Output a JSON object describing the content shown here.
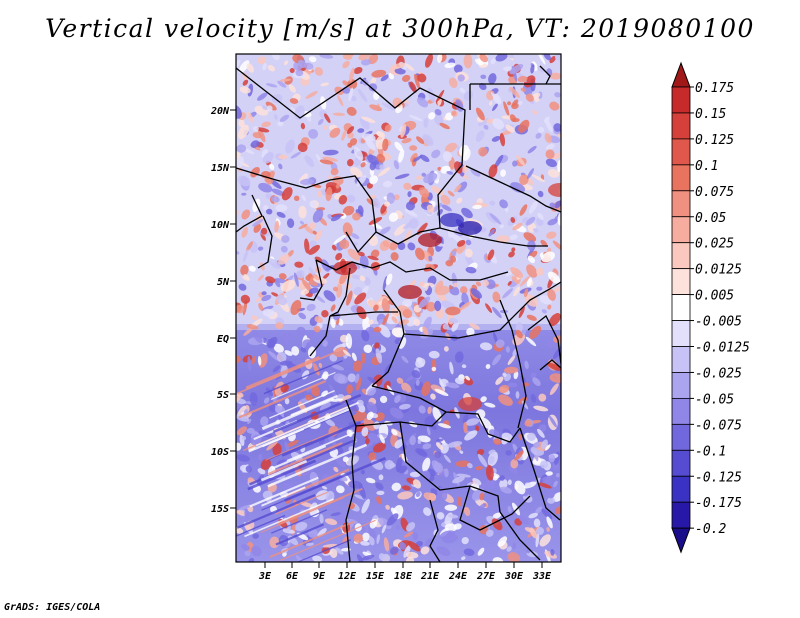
{
  "title": "Vertical velocity [m/s] at 300hPa, VT: 2019080100",
  "credit": "GrADS: IGES/COLA",
  "map": {
    "variable": "Vertical velocity",
    "units": "m/s",
    "level": "300hPa",
    "valid_time": "2019080100",
    "lat_labels": [
      "20N",
      "15N",
      "10N",
      "5N",
      "EQ",
      "5S",
      "10S",
      "15S"
    ],
    "lon_labels": [
      "3E",
      "6E",
      "9E",
      "12E",
      "15E",
      "18E",
      "21E",
      "24E",
      "27E",
      "30E",
      "33E"
    ]
  },
  "colorbar": {
    "labels": [
      "0.175",
      "0.15",
      "0.125",
      "0.1",
      "0.075",
      "0.05",
      "0.025",
      "0.0125",
      "0.005",
      "-0.005",
      "-0.0125",
      "-0.025",
      "-0.05",
      "-0.075",
      "-0.1",
      "-0.125",
      "-0.175",
      "-0.2"
    ],
    "colors": [
      "#b0181f",
      "#c62a2b",
      "#d6403a",
      "#e0584c",
      "#e8735f",
      "#f09080",
      "#f6ada0",
      "#fac8be",
      "#fde2dc",
      "#ffffff",
      "#e2e0fb",
      "#c7c3f6",
      "#aba5f0",
      "#8f86e8",
      "#7268de",
      "#554cd2",
      "#3a32c2",
      "#2718a8",
      "#1a0d8c"
    ],
    "top_color": "#a01818",
    "bottom_color": "#1a0d8c"
  }
}
